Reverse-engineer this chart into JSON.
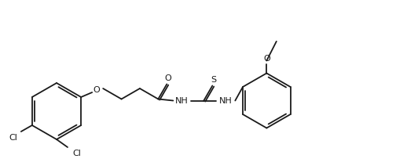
{
  "background": "#ffffff",
  "lc": "#1a1a1a",
  "lw": 1.3,
  "fs": 8.0,
  "figsize": [
    5.04,
    2.12
  ],
  "dpi": 100,
  "xlim": [
    0,
    504
  ],
  "ylim": [
    0,
    212
  ]
}
